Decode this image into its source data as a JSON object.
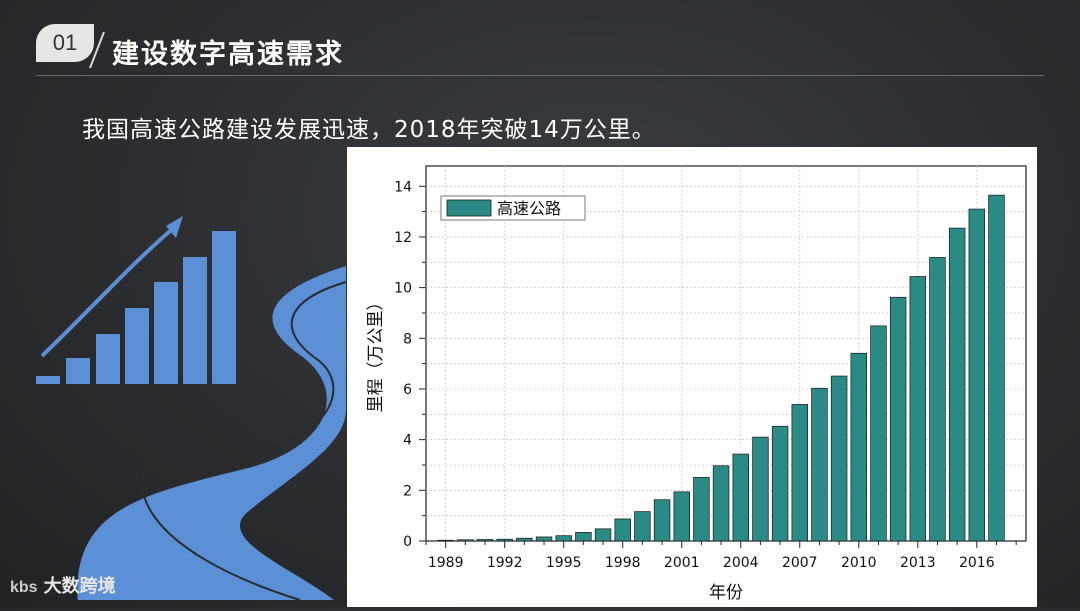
{
  "header": {
    "number": "01",
    "title": "建设数字高速需求"
  },
  "subtitle": "我国高速公路建设发展迅速，2018年突破14万公里。",
  "watermark": {
    "logo": "kbs",
    "text": "大数跨境"
  },
  "colors": {
    "bar": "#2a8a86",
    "decoration": "#5b8fd6",
    "background": "#2b2d30"
  },
  "icons": {
    "badge": "number-badge",
    "decoration": "growth-bars-road-icon"
  },
  "chart_data": {
    "type": "bar",
    "xlabel": "年份",
    "ylabel": "里程（万公里）",
    "legend": "高速公路",
    "legend_position": "top-left",
    "grid": true,
    "ylim": [
      0,
      14.8
    ],
    "xlim": [
      1988,
      2018.5
    ],
    "yticks": [
      0,
      2,
      4,
      6,
      8,
      10,
      12,
      14
    ],
    "xticks": [
      1989,
      1992,
      1995,
      1998,
      2001,
      2004,
      2007,
      2010,
      2013,
      2016
    ],
    "x": [
      1989,
      1990,
      1991,
      1992,
      1993,
      1994,
      1995,
      1996,
      1997,
      1998,
      1999,
      2000,
      2001,
      2002,
      2003,
      2004,
      2005,
      2006,
      2007,
      2008,
      2009,
      2010,
      2011,
      2012,
      2013,
      2014,
      2015,
      2016,
      2017
    ],
    "values": [
      0.03,
      0.05,
      0.06,
      0.07,
      0.11,
      0.16,
      0.21,
      0.34,
      0.48,
      0.87,
      1.16,
      1.63,
      1.94,
      2.51,
      2.97,
      3.43,
      4.1,
      4.53,
      5.39,
      6.03,
      6.51,
      7.41,
      8.49,
      9.62,
      10.44,
      11.19,
      12.35,
      13.1,
      13.65
    ]
  }
}
